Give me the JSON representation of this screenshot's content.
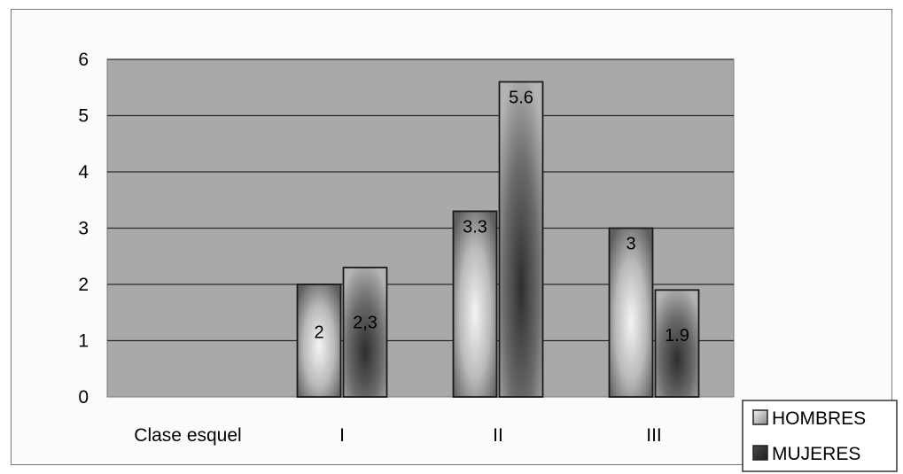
{
  "chart_data": {
    "type": "bar",
    "categories": [
      "I",
      "II",
      "III"
    ],
    "category_axis_title": "Clase esquel",
    "series": [
      {
        "name": "HOMBRES",
        "values": [
          2,
          3.3,
          3
        ],
        "labels": [
          "2",
          "3.3",
          "3"
        ]
      },
      {
        "name": "MUJERES",
        "values": [
          2.3,
          5.6,
          1.9
        ],
        "labels": [
          "2,3",
          "5.6",
          "1.9"
        ]
      }
    ],
    "yticks": [
      "0",
      "1",
      "2",
      "3",
      "4",
      "5",
      "6"
    ],
    "ylim": [
      0,
      6
    ],
    "grid": true,
    "legend_position": "bottom-right",
    "colors": {
      "plot_background": "#a9a9a9",
      "gridline": "#2a2a2a",
      "hombres_light": "#f4f4f4",
      "hombres_dark": "#5f5f5f",
      "mujeres_light": "#b4b4b4",
      "mujeres_dark": "#2e2e2e",
      "bar_border": "#1a1a1a"
    }
  }
}
